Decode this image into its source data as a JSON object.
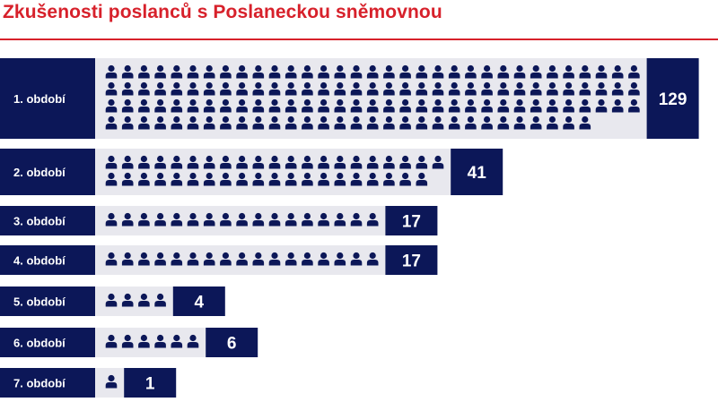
{
  "title": "Zkušenosti poslanců s Poslaneckou sněmovnou",
  "colors": {
    "accent": "#d7212b",
    "navy": "#0c1758",
    "track": "#e8e8ee",
    "label_text": "#ffffff"
  },
  "icon_name": "person-icon",
  "chart_data": {
    "type": "bar",
    "categories": [
      "1. období",
      "2. období",
      "3. období",
      "4. období",
      "5. období",
      "6. období",
      "7. období"
    ],
    "values": [
      129,
      41,
      17,
      17,
      4,
      6,
      1
    ],
    "value_labels": [
      "129",
      "41",
      "17",
      "17",
      "4",
      "6",
      "1"
    ],
    "title": "Zkušenosti poslanců s Poslaneckou sněmovnou",
    "xlabel": "",
    "ylabel": "",
    "grid": false,
    "legend": "none"
  }
}
